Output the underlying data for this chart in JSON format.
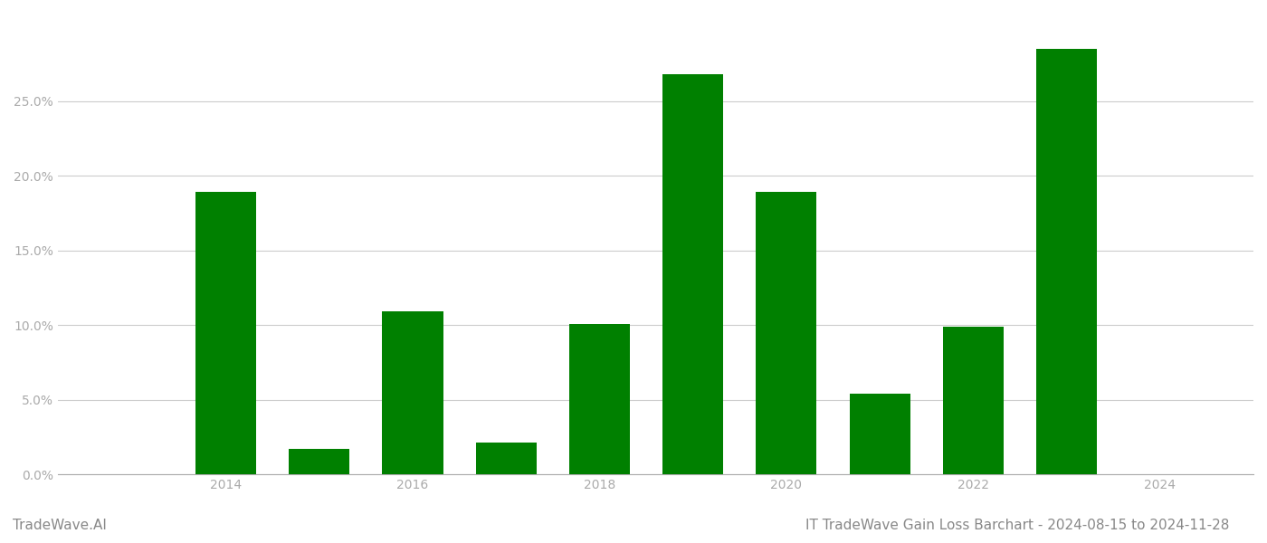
{
  "years": [
    2013,
    2014,
    2015,
    2016,
    2017,
    2018,
    2019,
    2020,
    2021,
    2022,
    2023
  ],
  "values": [
    null,
    0.189,
    0.017,
    0.109,
    0.021,
    0.101,
    0.268,
    0.189,
    0.054,
    0.099,
    0.285
  ],
  "bar_color": "#008000",
  "background_color": "#ffffff",
  "tick_color": "#aaaaaa",
  "grid_color": "#cccccc",
  "axis_color": "#aaaaaa",
  "title_text": "IT TradeWave Gain Loss Barchart - 2024-08-15 to 2024-11-28",
  "watermark_text": "TradeWave.AI",
  "title_fontsize": 11,
  "watermark_fontsize": 11,
  "yticks": [
    0.0,
    0.05,
    0.1,
    0.15,
    0.2,
    0.25
  ],
  "ylim": [
    0,
    0.305
  ],
  "xlim": [
    2012.2,
    2025.0
  ],
  "xtick_positions": [
    2014,
    2016,
    2018,
    2020,
    2022,
    2024
  ],
  "bar_width": 0.65
}
